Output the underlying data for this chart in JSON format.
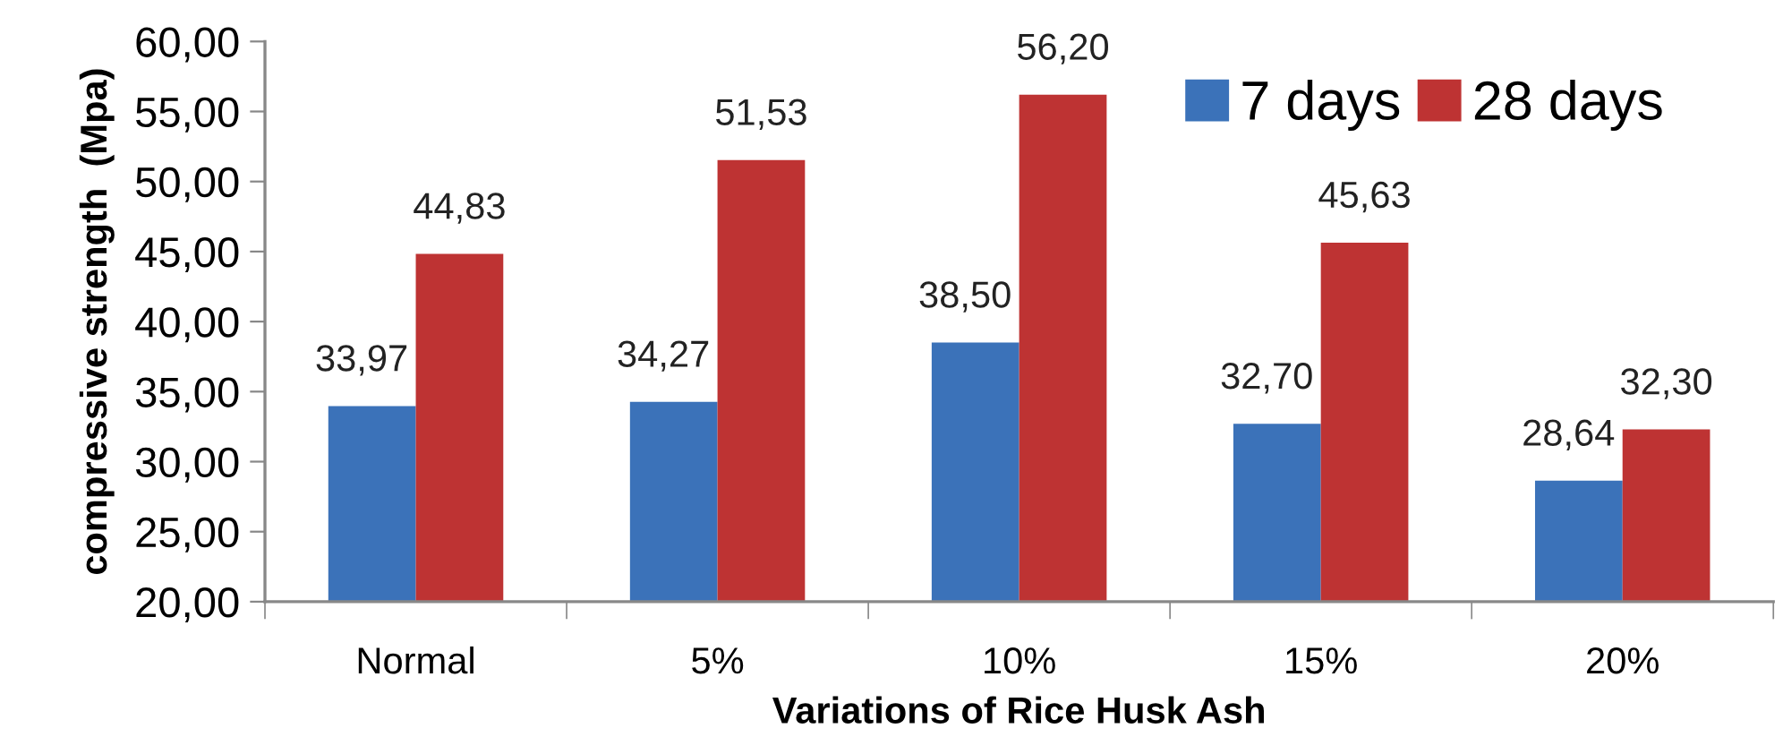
{
  "chart_data": {
    "type": "bar",
    "xlabel": "Variations of Rice Husk Ash",
    "ylabel": "compressive strength  (Mpa)",
    "categories": [
      "Normal",
      "5%",
      "10%",
      "15%",
      "20%"
    ],
    "series": [
      {
        "name": "7 days",
        "color": "#3b72b9",
        "values": [
          33.97,
          34.27,
          38.5,
          32.7,
          28.64
        ],
        "value_labels": [
          "33,97",
          "34,27",
          "38,50",
          "32,70",
          "28,64"
        ]
      },
      {
        "name": "28 days",
        "color": "#be3333",
        "values": [
          44.83,
          51.53,
          56.2,
          45.63,
          32.3
        ],
        "value_labels": [
          "44,83",
          "51,53",
          "56,20",
          "45,63",
          "32,30"
        ]
      }
    ],
    "ylim": [
      20,
      60
    ],
    "yticks": [
      {
        "value": 20,
        "label": "20,00"
      },
      {
        "value": 25,
        "label": "25,00"
      },
      {
        "value": 30,
        "label": "30,00"
      },
      {
        "value": 35,
        "label": "35,00"
      },
      {
        "value": 40,
        "label": "40,00"
      },
      {
        "value": 45,
        "label": "45,00"
      },
      {
        "value": 50,
        "label": "50,00"
      },
      {
        "value": 55,
        "label": "55,00"
      },
      {
        "value": 60,
        "label": "60,00"
      }
    ],
    "legend": "top right"
  }
}
